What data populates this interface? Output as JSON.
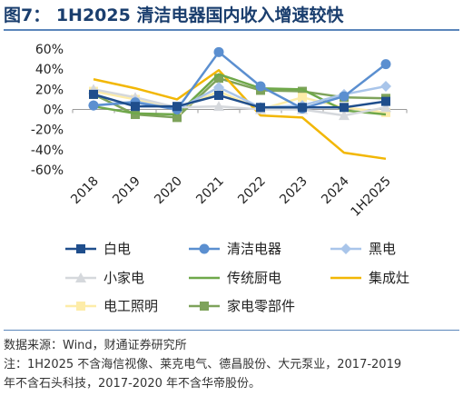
{
  "title": "图7：  1H2025 清洁电器国内收入增速较快",
  "footer": {
    "source": "数据来源：Wind，财通证券研究所",
    "note_line1": "注：1H2025 不含海信视像、莱克电气、德昌股份、大元泵业，2017-2019",
    "note_line2": "年不含石头科技，2017-2020 年不含华帝股份。"
  },
  "chart_data": {
    "type": "line",
    "title": "",
    "xlabel": "",
    "ylabel": "",
    "categories": [
      "2018",
      "2019",
      "2020",
      "2021",
      "2022",
      "2023",
      "2024",
      "1H2025"
    ],
    "y_ticks": [
      "60%",
      "40%",
      "20%",
      "0%",
      "-20%",
      "-40%",
      "-60%"
    ],
    "y_tick_values": [
      60,
      40,
      20,
      0,
      -20,
      -40,
      -60
    ],
    "ylim": [
      -60,
      60
    ],
    "grid": false,
    "legend_position": "bottom",
    "series": [
      {
        "name": "白电",
        "color": "#1f4e8c",
        "marker": "square",
        "values": [
          15,
          3,
          3,
          14,
          2,
          2,
          2,
          8
        ]
      },
      {
        "name": "清洁电器",
        "color": "#5b8fd0",
        "marker": "circle",
        "values": [
          4,
          7,
          0,
          57,
          23,
          1,
          13,
          45
        ]
      },
      {
        "name": "黑电",
        "color": "#a9c5ea",
        "marker": "diamond",
        "values": [
          4,
          8,
          0,
          22,
          2,
          4,
          15,
          23
        ]
      },
      {
        "name": "小家电",
        "color": "#d5d8dc",
        "marker": "triangle",
        "values": [
          20,
          12,
          2,
          3,
          0,
          0,
          -6,
          2
        ]
      },
      {
        "name": "传统厨电",
        "color": "#6fa84a",
        "marker": "line",
        "values": [
          3,
          -4,
          -5,
          35,
          21,
          20,
          -1,
          -5
        ]
      },
      {
        "name": "集成灶",
        "color": "#f2b705",
        "marker": "line",
        "values": [
          30,
          21,
          10,
          39,
          -6,
          -8,
          -43,
          -49
        ]
      },
      {
        "name": "电工照明",
        "color": "#fdeca8",
        "marker": "square",
        "values": [
          18,
          10,
          0,
          18,
          0,
          12,
          2,
          -3
        ]
      },
      {
        "name": "家电零部件",
        "color": "#7ea35b",
        "marker": "square",
        "values": [
          15,
          -5,
          -8,
          31,
          19,
          18,
          12,
          11
        ]
      }
    ]
  }
}
